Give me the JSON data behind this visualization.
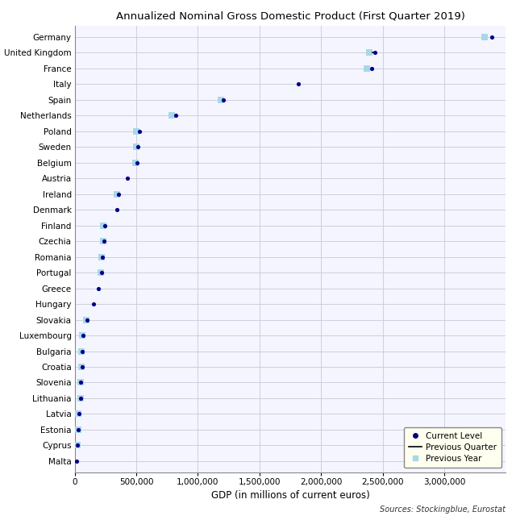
{
  "title": "Annualized Nominal Gross Domestic Product (First Quarter 2019)",
  "xlabel": "GDP (in millions of current euros)",
  "source": "Sources: Stockingblue, Eurostat",
  "countries": [
    "Germany",
    "United Kingdom",
    "France",
    "Italy",
    "Spain",
    "Netherlands",
    "Poland",
    "Sweden",
    "Belgium",
    "Austria",
    "Ireland",
    "Denmark",
    "Finland",
    "Czechia",
    "Romania",
    "Portugal",
    "Greece",
    "Hungary",
    "Slovakia",
    "Luxembourg",
    "Bulgaria",
    "Croatia",
    "Slovenia",
    "Lithuania",
    "Latvia",
    "Estonia",
    "Cyprus",
    "Malta"
  ],
  "current": [
    3386000,
    2440000,
    2413000,
    1815000,
    1208000,
    823000,
    524000,
    513000,
    506000,
    430000,
    354000,
    345000,
    241000,
    237000,
    222000,
    215000,
    189000,
    150000,
    100000,
    66000,
    59000,
    57000,
    48000,
    48000,
    32000,
    27000,
    22000,
    13000
  ],
  "prev_quarter": [
    null,
    2420000,
    null,
    null,
    null,
    null,
    null,
    null,
    null,
    null,
    null,
    null,
    null,
    null,
    null,
    null,
    null,
    null,
    null,
    null,
    null,
    null,
    null,
    null,
    null,
    null,
    null,
    null
  ],
  "prev_year": [
    3330000,
    2390000,
    2375000,
    null,
    1185000,
    790000,
    498000,
    498000,
    490000,
    null,
    340000,
    null,
    232000,
    228000,
    215000,
    209000,
    null,
    null,
    96000,
    62000,
    54000,
    52000,
    46000,
    44000,
    30000,
    25000,
    20000,
    null
  ],
  "dot_color": "#00008B",
  "sq_color": "#A8D8E8",
  "line_color": "#000000",
  "bg_color": "#FFFFFF",
  "plot_bg": "#F5F5FF",
  "grid_color": "#C8C8D8",
  "xlim": [
    0,
    3500000
  ],
  "xticks": [
    0,
    500000,
    1000000,
    1500000,
    2000000,
    2500000,
    3000000
  ],
  "xtick_labels": [
    "0",
    "500,000",
    "1,000,000",
    "1,500,000",
    "2,000,000",
    "2,500,000",
    "3,000,000"
  ],
  "legend_bg": "#FFFFF0"
}
